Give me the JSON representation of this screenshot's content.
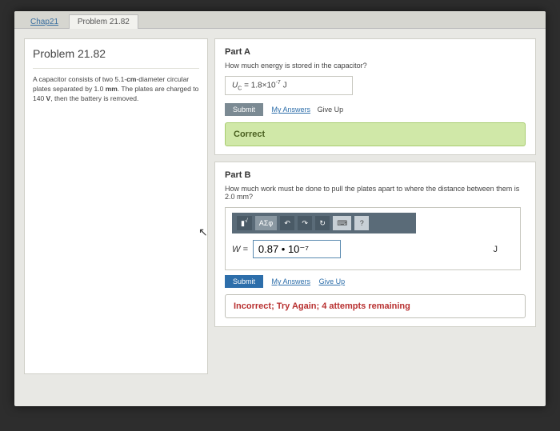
{
  "tabs": {
    "chap": "Chap21",
    "problem": "Problem 21.82"
  },
  "left": {
    "title": "Problem 21.82",
    "desc_pre": "A capacitor consists of two 5.1-",
    "desc_cm": "cm",
    "desc_mid1": "-diameter circular plates separated by 1.0 ",
    "desc_mm": "mm",
    "desc_mid2": ". The plates are charged to 140 ",
    "desc_v": "V",
    "desc_end": ", then the battery is removed."
  },
  "partA": {
    "title": "Part A",
    "question": "How much energy is stored in the capacitor?",
    "var": "U",
    "sub": "C",
    "eq": " = ",
    "val": "1.8×10",
    "exp": "-7",
    "unit": "   J",
    "submit": "Submit",
    "my_answers": "My Answers",
    "give_up": "Give Up",
    "feedback": "Correct"
  },
  "partB": {
    "title": "Part B",
    "question": "How much work must be done to pull the plates apart to where the distance between them is 2.0 mm?",
    "toolbar": {
      "sqrt": "√",
      "sigma": "ΑΣφ",
      "undo": "↶",
      "redo": "↷",
      "reset": "↻",
      "keyboard": "⌨",
      "help": "?"
    },
    "var": "W",
    "eq": " = ",
    "value": "0.87 • 10⁻⁷",
    "unit": "J",
    "submit": "Submit",
    "my_answers": "My Answers",
    "give_up": "Give Up",
    "feedback": "Incorrect; Try Again; 4 attempts remaining"
  }
}
